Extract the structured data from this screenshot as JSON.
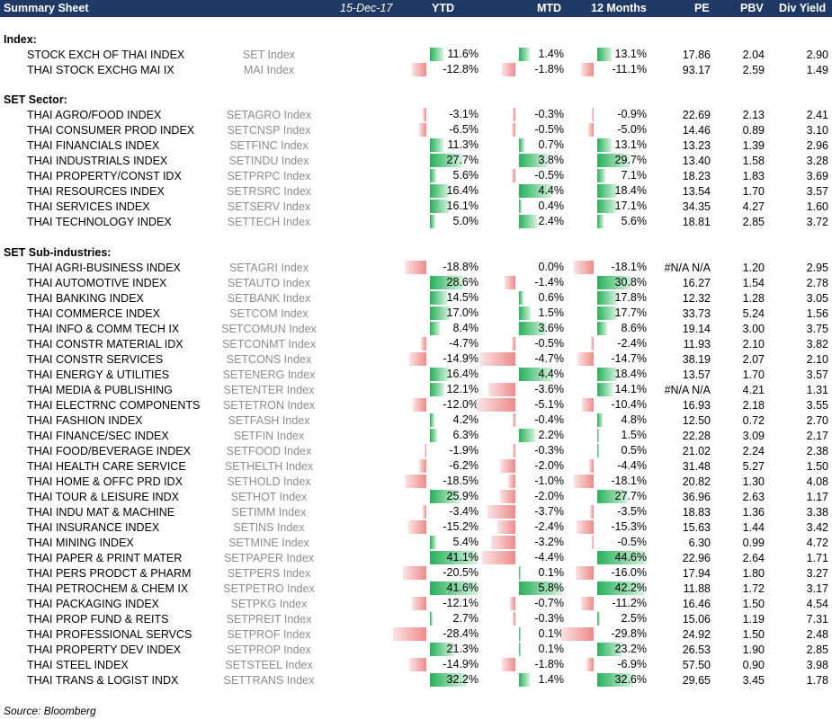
{
  "header": {
    "title": "Summary Sheet",
    "date": "15-Dec-17",
    "columns": [
      "YTD",
      "MTD",
      "12 Months",
      "PE",
      "PBV",
      "Div Yield"
    ]
  },
  "sections": [
    {
      "label": "Index:",
      "rows": [
        {
          "name": "STOCK EXCH OF THAI INDEX",
          "ticker": "SET Index",
          "ytd": "11.6%",
          "mtd": "1.4%",
          "m12": "13.1%",
          "pe": "17.86",
          "pbv": "2.04",
          "div": "2.90",
          "ytd_v": 11.6,
          "mtd_v": 1.4,
          "m12_v": 13.1
        },
        {
          "name": "THAI STOCK EXCHG MAI IX",
          "ticker": "MAI Index",
          "ytd": "-12.8%",
          "mtd": "-1.8%",
          "m12": "-11.1%",
          "pe": "93.17",
          "pbv": "2.59",
          "div": "1.49",
          "ytd_v": -12.8,
          "mtd_v": -1.8,
          "m12_v": -11.1
        }
      ]
    },
    {
      "label": "SET Sector:",
      "rows": [
        {
          "name": "THAI AGRO/FOOD INDEX",
          "ticker": "SETAGRO Index",
          "ytd": "-3.1%",
          "mtd": "-0.3%",
          "m12": "-0.9%",
          "pe": "22.69",
          "pbv": "2.13",
          "div": "2.41",
          "ytd_v": -3.1,
          "mtd_v": -0.3,
          "m12_v": -0.9
        },
        {
          "name": "THAI CONSUMER PROD INDEX",
          "ticker": "SETCNSP Index",
          "ytd": "-6.5%",
          "mtd": "-0.5%",
          "m12": "-5.0%",
          "pe": "14.46",
          "pbv": "0.89",
          "div": "3.10",
          "ytd_v": -6.5,
          "mtd_v": -0.5,
          "m12_v": -5.0
        },
        {
          "name": "THAI FINANCIALS INDEX",
          "ticker": "SETFINC Index",
          "ytd": "11.3%",
          "mtd": "0.7%",
          "m12": "13.1%",
          "pe": "13.23",
          "pbv": "1.39",
          "div": "2.96",
          "ytd_v": 11.3,
          "mtd_v": 0.7,
          "m12_v": 13.1
        },
        {
          "name": "THAI INDUSTRIALS INDEX",
          "ticker": "SETINDU Index",
          "ytd": "27.7%",
          "mtd": "3.8%",
          "m12": "29.7%",
          "pe": "13.40",
          "pbv": "1.58",
          "div": "3.28",
          "ytd_v": 27.7,
          "mtd_v": 3.8,
          "m12_v": 29.7
        },
        {
          "name": "THAI PROPERTY/CONST IDX",
          "ticker": "SETPRPC Index",
          "ytd": "5.6%",
          "mtd": "-0.5%",
          "m12": "7.1%",
          "pe": "18.23",
          "pbv": "1.83",
          "div": "3.69",
          "ytd_v": 5.6,
          "mtd_v": -0.5,
          "m12_v": 7.1
        },
        {
          "name": "THAI RESOURCES INDEX",
          "ticker": "SETRSRC Index",
          "ytd": "16.4%",
          "mtd": "4.4%",
          "m12": "18.4%",
          "pe": "13.54",
          "pbv": "1.70",
          "div": "3.57",
          "ytd_v": 16.4,
          "mtd_v": 4.4,
          "m12_v": 18.4
        },
        {
          "name": "THAI SERVICES INDEX",
          "ticker": "SETSERV Index",
          "ytd": "16.1%",
          "mtd": "0.4%",
          "m12": "17.1%",
          "pe": "34.35",
          "pbv": "4.27",
          "div": "1.60",
          "ytd_v": 16.1,
          "mtd_v": 0.4,
          "m12_v": 17.1
        },
        {
          "name": "THAI TECHNOLOGY INDEX",
          "ticker": "SETTECH Index",
          "ytd": "5.0%",
          "mtd": "2.4%",
          "m12": "5.6%",
          "pe": "18.81",
          "pbv": "2.85",
          "div": "3.72",
          "ytd_v": 5.0,
          "mtd_v": 2.4,
          "m12_v": 5.6
        }
      ]
    },
    {
      "label": "SET Sub-industries:",
      "rows": [
        {
          "name": "THAI AGRI-BUSINESS INDEX",
          "ticker": "SETAGRI Index",
          "ytd": "-18.8%",
          "mtd": "0.0%",
          "m12": "-18.1%",
          "pe": "#N/A N/A",
          "pbv": "1.20",
          "div": "2.95",
          "ytd_v": -18.8,
          "mtd_v": 0.0,
          "m12_v": -18.1
        },
        {
          "name": "THAI AUTOMOTIVE INDEX",
          "ticker": "SETAUTO Index",
          "ytd": "28.6%",
          "mtd": "-1.4%",
          "m12": "30.8%",
          "pe": "16.27",
          "pbv": "1.54",
          "div": "2.78",
          "ytd_v": 28.6,
          "mtd_v": -1.4,
          "m12_v": 30.8
        },
        {
          "name": "THAI BANKING INDEX",
          "ticker": "SETBANK Index",
          "ytd": "14.5%",
          "mtd": "0.6%",
          "m12": "17.8%",
          "pe": "12.32",
          "pbv": "1.28",
          "div": "3.05",
          "ytd_v": 14.5,
          "mtd_v": 0.6,
          "m12_v": 17.8
        },
        {
          "name": "THAI COMMERCE INDEX",
          "ticker": "SETCOM Index",
          "ytd": "17.0%",
          "mtd": "1.5%",
          "m12": "17.7%",
          "pe": "33.73",
          "pbv": "5.24",
          "div": "1.56",
          "ytd_v": 17.0,
          "mtd_v": 1.5,
          "m12_v": 17.7
        },
        {
          "name": "THAI INFO & COMM TECH IX",
          "ticker": "SETCOMUN Index",
          "ytd": "8.4%",
          "mtd": "3.6%",
          "m12": "8.6%",
          "pe": "19.14",
          "pbv": "3.00",
          "div": "3.75",
          "ytd_v": 8.4,
          "mtd_v": 3.6,
          "m12_v": 8.6
        },
        {
          "name": "THAI CONSTR MATERIAL IDX",
          "ticker": "SETCONMT Index",
          "ytd": "-4.7%",
          "mtd": "-0.5%",
          "m12": "-2.4%",
          "pe": "11.93",
          "pbv": "2.10",
          "div": "3.82",
          "ytd_v": -4.7,
          "mtd_v": -0.5,
          "m12_v": -2.4
        },
        {
          "name": "THAI CONSTR SERVICES",
          "ticker": "SETCONS Index",
          "ytd": "-14.9%",
          "mtd": "-4.7%",
          "m12": "-14.7%",
          "pe": "38.19",
          "pbv": "2.07",
          "div": "2.10",
          "ytd_v": -14.9,
          "mtd_v": -4.7,
          "m12_v": -14.7
        },
        {
          "name": "THAI ENERGY & UTILITIES",
          "ticker": "SETENERG Index",
          "ytd": "16.4%",
          "mtd": "4.4%",
          "m12": "18.4%",
          "pe": "13.57",
          "pbv": "1.70",
          "div": "3.57",
          "ytd_v": 16.4,
          "mtd_v": 4.4,
          "m12_v": 18.4
        },
        {
          "name": "THAI MEDIA & PUBLISHING",
          "ticker": "SETENTER Index",
          "ytd": "12.1%",
          "mtd": "-3.6%",
          "m12": "14.1%",
          "pe": "#N/A N/A",
          "pbv": "4.21",
          "div": "1.31",
          "ytd_v": 12.1,
          "mtd_v": -3.6,
          "m12_v": 14.1
        },
        {
          "name": "THAI ELECTRNC COMPONENTS",
          "ticker": "SETETRON Index",
          "ytd": "-12.0%",
          "mtd": "-5.1%",
          "m12": "-10.4%",
          "pe": "16.93",
          "pbv": "2.18",
          "div": "3.55",
          "ytd_v": -12.0,
          "mtd_v": -5.1,
          "m12_v": -10.4
        },
        {
          "name": "THAI FASHION INDEX",
          "ticker": "SETFASH Index",
          "ytd": "4.2%",
          "mtd": "-0.4%",
          "m12": "4.8%",
          "pe": "12.50",
          "pbv": "0.72",
          "div": "2.70",
          "ytd_v": 4.2,
          "mtd_v": -0.4,
          "m12_v": 4.8
        },
        {
          "name": "THAI FINANCE/SEC INDEX",
          "ticker": "SETFIN Index",
          "ytd": "6.3%",
          "mtd": "2.2%",
          "m12": "1.5%",
          "pe": "22.28",
          "pbv": "3.09",
          "div": "2.17",
          "ytd_v": 6.3,
          "mtd_v": 2.2,
          "m12_v": 1.5
        },
        {
          "name": "THAI FOOD/BEVERAGE INDEX",
          "ticker": "SETFOOD Index",
          "ytd": "-1.9%",
          "mtd": "-0.3%",
          "m12": "0.5%",
          "pe": "21.02",
          "pbv": "2.24",
          "div": "2.38",
          "ytd_v": -1.9,
          "mtd_v": -0.3,
          "m12_v": 0.5
        },
        {
          "name": "THAI HEALTH CARE SERVICE",
          "ticker": "SETHELTH Index",
          "ytd": "-6.2%",
          "mtd": "-2.0%",
          "m12": "-4.4%",
          "pe": "31.48",
          "pbv": "5.27",
          "div": "1.50",
          "ytd_v": -6.2,
          "mtd_v": -2.0,
          "m12_v": -4.4
        },
        {
          "name": "THAI HOME & OFFC PRD IDX",
          "ticker": "SETHOLD Index",
          "ytd": "-18.5%",
          "mtd": "-1.0%",
          "m12": "-18.1%",
          "pe": "20.82",
          "pbv": "1.30",
          "div": "4.08",
          "ytd_v": -18.5,
          "mtd_v": -1.0,
          "m12_v": -18.1
        },
        {
          "name": "THAI TOUR & LEISURE INDX",
          "ticker": "SETHOT Index",
          "ytd": "25.9%",
          "mtd": "-2.0%",
          "m12": "27.7%",
          "pe": "36.96",
          "pbv": "2.63",
          "div": "1.17",
          "ytd_v": 25.9,
          "mtd_v": -2.0,
          "m12_v": 27.7
        },
        {
          "name": "THAI INDU MAT & MACHINE",
          "ticker": "SETIMM Index",
          "ytd": "-3.4%",
          "mtd": "-3.7%",
          "m12": "-3.5%",
          "pe": "18.83",
          "pbv": "1.36",
          "div": "3.38",
          "ytd_v": -3.4,
          "mtd_v": -3.7,
          "m12_v": -3.5
        },
        {
          "name": "THAI INSURANCE INDEX",
          "ticker": "SETINS Index",
          "ytd": "-15.2%",
          "mtd": "-2.4%",
          "m12": "-15.3%",
          "pe": "15.63",
          "pbv": "1.44",
          "div": "3.42",
          "ytd_v": -15.2,
          "mtd_v": -2.4,
          "m12_v": -15.3
        },
        {
          "name": "THAI MINING INDEX",
          "ticker": "SETMINE Index",
          "ytd": "5.4%",
          "mtd": "-3.2%",
          "m12": "-0.5%",
          "pe": "6.30",
          "pbv": "0.99",
          "div": "4.72",
          "ytd_v": 5.4,
          "mtd_v": -3.2,
          "m12_v": -0.5
        },
        {
          "name": "THAI PAPER & PRINT MATER",
          "ticker": "SETPAPER Index",
          "ytd": "41.1%",
          "mtd": "-4.4%",
          "m12": "44.6%",
          "pe": "22.96",
          "pbv": "2.64",
          "div": "1.71",
          "ytd_v": 41.1,
          "mtd_v": -4.4,
          "m12_v": 44.6
        },
        {
          "name": "THAI PERS PRODCT & PHARM",
          "ticker": "SETPERS Index",
          "ytd": "-20.5%",
          "mtd": "0.1%",
          "m12": "-16.0%",
          "pe": "17.94",
          "pbv": "1.80",
          "div": "3.27",
          "ytd_v": -20.5,
          "mtd_v": 0.1,
          "m12_v": -16.0
        },
        {
          "name": "THAI PETROCHEM & CHEM IX",
          "ticker": "SETPETRO Index",
          "ytd": "41.6%",
          "mtd": "5.8%",
          "m12": "42.2%",
          "pe": "11.88",
          "pbv": "1.72",
          "div": "3.17",
          "ytd_v": 41.6,
          "mtd_v": 5.8,
          "m12_v": 42.2
        },
        {
          "name": "THAI PACKAGING INDEX",
          "ticker": "SETPKG Index",
          "ytd": "-12.1%",
          "mtd": "-0.7%",
          "m12": "-11.2%",
          "pe": "16.46",
          "pbv": "1.50",
          "div": "4.54",
          "ytd_v": -12.1,
          "mtd_v": -0.7,
          "m12_v": -11.2
        },
        {
          "name": "THAI PROP FUND & REITS",
          "ticker": "SETPREIT Index",
          "ytd": "2.7%",
          "mtd": "-0.3%",
          "m12": "2.5%",
          "pe": "15.06",
          "pbv": "1.19",
          "div": "7.31",
          "ytd_v": 2.7,
          "mtd_v": -0.3,
          "m12_v": 2.5
        },
        {
          "name": "THAI PROFESSIONAL SERVCS",
          "ticker": "SETPROF Index",
          "ytd": "-28.4%",
          "mtd": "0.1%",
          "m12": "-29.8%",
          "pe": "24.92",
          "pbv": "1.50",
          "div": "2.48",
          "ytd_v": -28.4,
          "mtd_v": 0.1,
          "m12_v": -29.8
        },
        {
          "name": "THAI PROPERTY DEV INDEX",
          "ticker": "SETPROP Index",
          "ytd": "21.3%",
          "mtd": "0.1%",
          "m12": "23.2%",
          "pe": "26.53",
          "pbv": "1.90",
          "div": "2.85",
          "ytd_v": 21.3,
          "mtd_v": 0.1,
          "m12_v": 23.2
        },
        {
          "name": "THAI STEEL INDEX",
          "ticker": "SETSTEEL Index",
          "ytd": "-14.9%",
          "mtd": "-1.8%",
          "m12": "-6.9%",
          "pe": "57.50",
          "pbv": "0.90",
          "div": "3.98",
          "ytd_v": -14.9,
          "mtd_v": -1.8,
          "m12_v": -6.9
        },
        {
          "name": "THAI TRANS & LOGIST INDX",
          "ticker": "SETTRANS Index",
          "ytd": "32.2%",
          "mtd": "1.4%",
          "m12": "32.6%",
          "pe": "29.65",
          "pbv": "3.45",
          "div": "1.78",
          "ytd_v": 32.2,
          "mtd_v": 1.4,
          "m12_v": 32.6
        }
      ]
    }
  ],
  "source": "Source: Bloomberg",
  "colors": {
    "header_bg": "#1f3864",
    "positive": "#27b15a",
    "negative": "#ee8a8a",
    "ticker": "#8c8c8c"
  }
}
